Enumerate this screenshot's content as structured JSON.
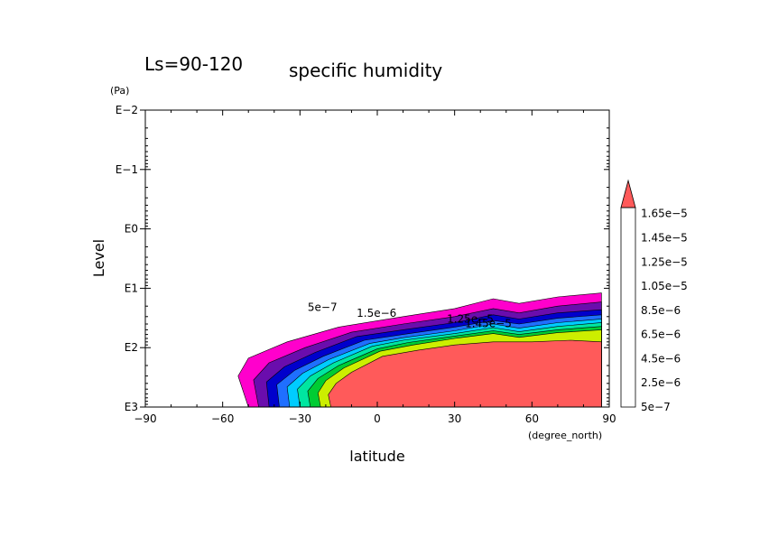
{
  "chart_data": {
    "type": "heatmap",
    "title_left": "Ls=90-120",
    "title_right": "specific humidity",
    "xlabel": "latitude",
    "xunit": "(degree_north)",
    "ylabel": "Level",
    "yunit": "(Pa)",
    "xlim": [
      -90,
      90
    ],
    "ylim": [
      0.01,
      1000
    ],
    "yscale": "log",
    "y_reversed": true,
    "xticks": [
      "−90",
      "−60",
      "−30",
      "0",
      "30",
      "60",
      "90"
    ],
    "yticks": [
      "E−2",
      "E−1",
      "E0",
      "E1",
      "E2",
      "E3"
    ],
    "colorbar": {
      "labels": [
        "5e−7",
        "2.5e−6",
        "4.5e−6",
        "6.5e−6",
        "8.5e−6",
        "1.05e−5",
        "1.25e−5",
        "1.45e−5",
        "1.65e−5"
      ],
      "colors": [
        "#ff00cc",
        "#6a0dad",
        "#0000cc",
        "#1f6fff",
        "#00ccff",
        "#00e6a0",
        "#00cc33",
        "#66dd00",
        "#ccee00",
        "#ffee00",
        "#ffbb00",
        "#ff8800",
        "#ff3300",
        "#dd0000"
      ],
      "overflow_color": "#ff5a5a"
    },
    "field_bands": [
      {
        "level": "5e-7",
        "color": "#ff00cc",
        "boundary": [
          [
            -50,
            1000
          ],
          [
            -54,
            300
          ],
          [
            -50,
            150
          ],
          [
            -35,
            80
          ],
          [
            -15,
            45
          ],
          [
            10,
            30
          ],
          [
            30,
            22
          ],
          [
            45,
            15
          ],
          [
            55,
            18
          ],
          [
            70,
            14
          ],
          [
            87,
            12
          ],
          [
            87,
            1000
          ]
        ]
      },
      {
        "level": "1.5e-6",
        "color": "#6a0dad",
        "boundary": [
          [
            -46,
            1000
          ],
          [
            -48,
            350
          ],
          [
            -42,
            180
          ],
          [
            -28,
            100
          ],
          [
            -10,
            55
          ],
          [
            10,
            40
          ],
          [
            30,
            30
          ],
          [
            45,
            22
          ],
          [
            55,
            26
          ],
          [
            70,
            20
          ],
          [
            87,
            17
          ],
          [
            87,
            1000
          ]
        ]
      },
      {
        "level": "2.5e-6",
        "color": "#0000cc",
        "boundary": [
          [
            -42,
            1000
          ],
          [
            -43,
            380
          ],
          [
            -36,
            210
          ],
          [
            -24,
            120
          ],
          [
            -8,
            65
          ],
          [
            10,
            50
          ],
          [
            30,
            38
          ],
          [
            45,
            28
          ],
          [
            55,
            33
          ],
          [
            70,
            26
          ],
          [
            87,
            23
          ],
          [
            87,
            1000
          ]
        ]
      },
      {
        "level": "4.5e-6",
        "color": "#1f6fff",
        "boundary": [
          [
            -38,
            1000
          ],
          [
            -39,
            420
          ],
          [
            -32,
            240
          ],
          [
            -21,
            140
          ],
          [
            -5,
            75
          ],
          [
            10,
            60
          ],
          [
            30,
            45
          ],
          [
            45,
            35
          ],
          [
            55,
            40
          ],
          [
            70,
            32
          ],
          [
            87,
            28
          ],
          [
            87,
            1000
          ]
        ]
      },
      {
        "level": "6.5e-6",
        "color": "#00ccff",
        "boundary": [
          [
            -34,
            1000
          ],
          [
            -35,
            460
          ],
          [
            -29,
            270
          ],
          [
            -19,
            160
          ],
          [
            -3,
            85
          ],
          [
            10,
            68
          ],
          [
            30,
            52
          ],
          [
            45,
            40
          ],
          [
            55,
            47
          ],
          [
            70,
            38
          ],
          [
            87,
            33
          ],
          [
            87,
            1000
          ]
        ]
      },
      {
        "level": "8.5e-6",
        "color": "#00e6a0",
        "boundary": [
          [
            -30,
            1000
          ],
          [
            -31,
            500
          ],
          [
            -26,
            300
          ],
          [
            -17,
            180
          ],
          [
            -2,
            95
          ],
          [
            10,
            75
          ],
          [
            30,
            58
          ],
          [
            45,
            46
          ],
          [
            55,
            54
          ],
          [
            70,
            44
          ],
          [
            87,
            38
          ],
          [
            87,
            1000
          ]
        ]
      },
      {
        "level": "1.05e-5",
        "color": "#00cc33",
        "boundary": [
          [
            -26,
            1000
          ],
          [
            -27,
            540
          ],
          [
            -23,
            330
          ],
          [
            -15,
            200
          ],
          [
            0,
            105
          ],
          [
            12,
            82
          ],
          [
            30,
            64
          ],
          [
            45,
            52
          ],
          [
            55,
            60
          ],
          [
            70,
            50
          ],
          [
            87,
            44
          ],
          [
            87,
            1000
          ]
        ]
      },
      {
        "level": "1.25e-5",
        "color": "#ccee00",
        "boundary": [
          [
            -22,
            1000
          ],
          [
            -23,
            580
          ],
          [
            -20,
            360
          ],
          [
            -13,
            220
          ],
          [
            1,
            115
          ],
          [
            14,
            90
          ],
          [
            30,
            70
          ],
          [
            45,
            58
          ],
          [
            55,
            67
          ],
          [
            70,
            56
          ],
          [
            87,
            50
          ],
          [
            87,
            1000
          ]
        ]
      },
      {
        "level": "1.65e-5+",
        "color": "#ff5a5a",
        "boundary": [
          [
            -18,
            1000
          ],
          [
            -19,
            620
          ],
          [
            -16,
            400
          ],
          [
            -10,
            260
          ],
          [
            2,
            140
          ],
          [
            16,
            110
          ],
          [
            30,
            90
          ],
          [
            45,
            80
          ],
          [
            60,
            80
          ],
          [
            75,
            75
          ],
          [
            87,
            80
          ],
          [
            87,
            1000
          ]
        ]
      }
    ],
    "contour_labels": [
      {
        "text": "5e−7",
        "x": -27,
        "y": 24
      },
      {
        "text": "1.5e−6",
        "x": -8,
        "y": 30
      },
      {
        "text": "1.25e−5",
        "x": 27,
        "y": 38
      },
      {
        "text": "1.45e−5",
        "x": 34,
        "y": 45
      }
    ]
  }
}
